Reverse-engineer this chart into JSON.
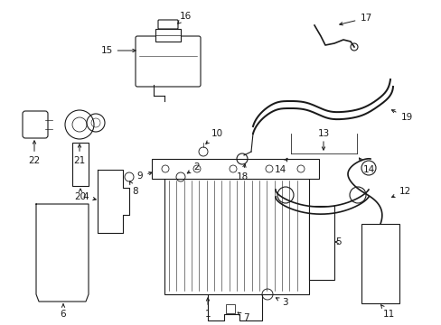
{
  "bg_color": "#ffffff",
  "line_color": "#1a1a1a",
  "text_color": "#1a1a1a",
  "fig_width": 4.89,
  "fig_height": 3.6,
  "dpi": 100,
  "lw": 0.8,
  "fs": 7.5
}
